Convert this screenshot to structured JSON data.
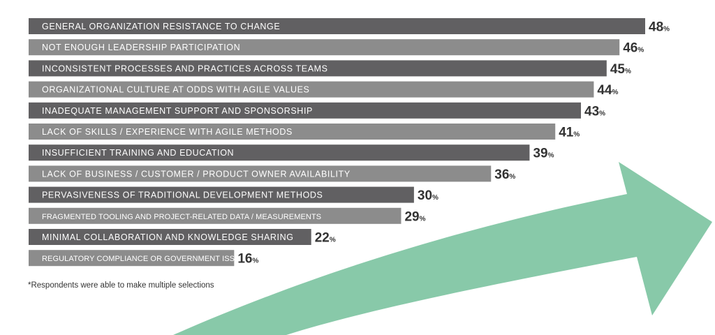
{
  "chart_data": {
    "type": "bar",
    "orientation": "horizontal",
    "categories": [
      "GENERAL ORGANIZATION RESISTANCE TO CHANGE",
      "NOT ENOUGH LEADERSHIP PARTICIPATION",
      "INCONSISTENT PROCESSES AND PRACTICES ACROSS TEAMS",
      "ORGANIZATIONAL CULTURE AT ODDS WITH AGILE VALUES",
      "INADEQUATE MANAGEMENT SUPPORT AND SPONSORSHIP",
      "LACK OF SKILLS / EXPERIENCE WITH AGILE METHODS",
      "INSUFFICIENT TRAINING AND EDUCATION",
      "LACK OF BUSINESS / CUSTOMER / PRODUCT OWNER AVAILABILITY",
      "PERVASIVENESS OF TRADITIONAL DEVELOPMENT METHODS",
      "FRAGMENTED TOOLING AND PROJECT-RELATED DATA / MEASUREMENTS",
      "MINIMAL COLLABORATION AND KNOWLEDGE SHARING",
      "REGULATORY COMPLIANCE OR GOVERNMENT ISSUE"
    ],
    "values": [
      48,
      46,
      45,
      44,
      43,
      41,
      39,
      36,
      30,
      29,
      22,
      16
    ],
    "value_suffix": "%",
    "title": "",
    "xlabel": "",
    "ylabel": "",
    "grid": false,
    "legend": "none",
    "colors": {
      "dark_bar": "#616062",
      "light_bar": "#8c8c8c",
      "label_text": "#ffffff",
      "value_text": "#333333",
      "arrow": "#88c9a9"
    }
  },
  "footnote": "*Respondents were able to make multiple selections",
  "decoration": {
    "arrow_icon": "upward-trend-arrow-icon"
  }
}
